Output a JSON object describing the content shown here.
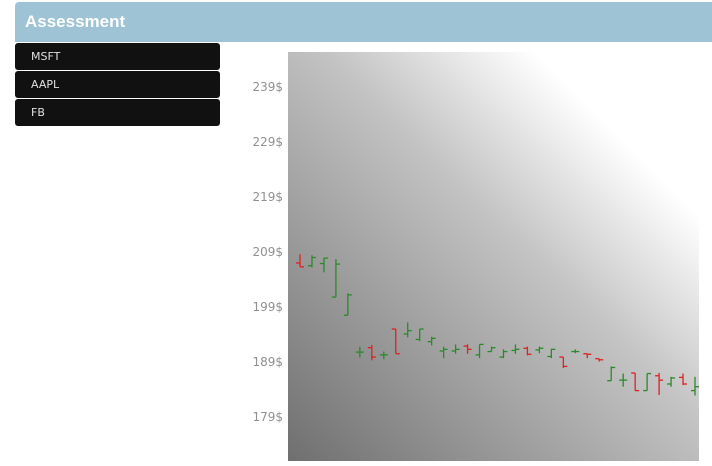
{
  "app": {
    "title": "Assessment"
  },
  "sidebar": {
    "items": [
      {
        "label": "MSFT"
      },
      {
        "label": "AAPL"
      },
      {
        "label": "FB"
      }
    ]
  },
  "colors": {
    "header": "#9dc3d4",
    "menu_bg": "#111111",
    "up": "#2a8a2a",
    "down": "#e02020"
  },
  "chart_data": {
    "type": "ohlc",
    "y_ticks": [
      "239$",
      "229$",
      "219$",
      "209$",
      "199$",
      "189$",
      "179$"
    ],
    "ylim": [
      172,
      246
    ],
    "bars": [
      {
        "o": 207.0,
        "h": 208.6,
        "l": 206.3,
        "c": 206.3
      },
      {
        "o": 206.5,
        "h": 208.4,
        "l": 206.2,
        "c": 208.0
      },
      {
        "o": 206.9,
        "h": 207.9,
        "l": 205.3,
        "c": 207.9
      },
      {
        "o": 200.8,
        "h": 207.7,
        "l": 200.8,
        "c": 206.8
      },
      {
        "o": 197.5,
        "h": 201.5,
        "l": 197.5,
        "c": 201.2
      },
      {
        "o": 190.8,
        "h": 191.8,
        "l": 189.8,
        "c": 190.8
      },
      {
        "o": 191.6,
        "h": 192.1,
        "l": 189.3,
        "c": 189.9
      },
      {
        "o": 190.3,
        "h": 190.9,
        "l": 189.5,
        "c": 190.3
      },
      {
        "o": 195.0,
        "h": 195.0,
        "l": 190.5,
        "c": 190.5
      },
      {
        "o": 194.1,
        "h": 196.2,
        "l": 193.5,
        "c": 194.7
      },
      {
        "o": 193.1,
        "h": 195.0,
        "l": 192.8,
        "c": 195.0
      },
      {
        "o": 192.7,
        "h": 193.6,
        "l": 192.0,
        "c": 193.3
      },
      {
        "o": 191.0,
        "h": 191.8,
        "l": 189.7,
        "c": 191.3
      },
      {
        "o": 191.0,
        "h": 192.2,
        "l": 190.5,
        "c": 191.3
      },
      {
        "o": 191.9,
        "h": 192.2,
        "l": 190.5,
        "c": 191.3
      },
      {
        "o": 190.3,
        "h": 192.2,
        "l": 189.7,
        "c": 192.2
      },
      {
        "o": 190.9,
        "h": 191.8,
        "l": 190.9,
        "c": 191.6
      },
      {
        "o": 189.9,
        "h": 191.3,
        "l": 189.7,
        "c": 190.9
      },
      {
        "o": 191.1,
        "h": 192.2,
        "l": 190.5,
        "c": 191.3
      },
      {
        "o": 191.5,
        "h": 191.8,
        "l": 190.2,
        "c": 190.4
      },
      {
        "o": 191.2,
        "h": 191.8,
        "l": 190.6,
        "c": 191.5
      },
      {
        "o": 190.0,
        "h": 191.4,
        "l": 189.7,
        "c": 191.3
      },
      {
        "o": 189.9,
        "h": 189.9,
        "l": 187.9,
        "c": 188.2
      },
      {
        "o": 190.9,
        "h": 191.3,
        "l": 190.6,
        "c": 190.9
      },
      {
        "o": 190.5,
        "h": 190.5,
        "l": 189.7,
        "c": 190.4
      },
      {
        "o": 189.6,
        "h": 189.6,
        "l": 189.1,
        "c": 189.4
      },
      {
        "o": 185.6,
        "h": 188.2,
        "l": 185.6,
        "c": 188.0
      },
      {
        "o": 185.7,
        "h": 186.9,
        "l": 184.5,
        "c": 185.7
      },
      {
        "o": 187.0,
        "h": 187.0,
        "l": 183.8,
        "c": 183.8
      },
      {
        "o": 183.8,
        "h": 186.9,
        "l": 183.8,
        "c": 186.9
      },
      {
        "o": 186.5,
        "h": 187.0,
        "l": 183.0,
        "c": 185.7
      },
      {
        "o": 185.0,
        "h": 186.3,
        "l": 184.5,
        "c": 186.1
      },
      {
        "o": 186.2,
        "h": 186.9,
        "l": 184.8,
        "c": 185.0
      },
      {
        "o": 183.8,
        "h": 186.3,
        "l": 182.9,
        "c": 184.5
      }
    ]
  }
}
